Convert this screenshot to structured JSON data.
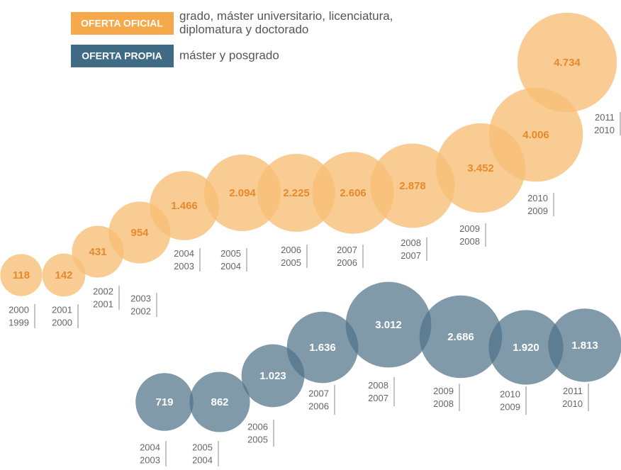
{
  "chart_data": {
    "type": "bubble",
    "series": [
      {
        "name": "OFERTA OFICIAL",
        "color": "#f7bf78",
        "label_color": "#e8892a",
        "badge_color": "#f5a94a",
        "description": [
          "grado, máster universitario, licenciatura,",
          "diplomatura y doctorado"
        ],
        "values": [
          118,
          142,
          431,
          954,
          1466,
          2094,
          2225,
          2606,
          2878,
          3452,
          4006,
          4734
        ],
        "value_labels": [
          "118",
          "142",
          "431",
          "954",
          "1.466",
          "2.094",
          "2.225",
          "2.606",
          "2.878",
          "3.452",
          "4.006",
          "4.734"
        ],
        "categories": [
          [
            "2000",
            "1999"
          ],
          [
            "2001",
            "2000"
          ],
          [
            "2002",
            "2001"
          ],
          [
            "2003",
            "2002"
          ],
          [
            "2004",
            "2003"
          ],
          [
            "2005",
            "2004"
          ],
          [
            "2006",
            "2005"
          ],
          [
            "2007",
            "2006"
          ],
          [
            "2008",
            "2007"
          ],
          [
            "2009",
            "2008"
          ],
          [
            "2010",
            "2009"
          ],
          [
            "2011",
            "2010"
          ]
        ]
      },
      {
        "name": "OFERTA PROPIA",
        "color": "#4f7389",
        "label_color": "#ffffff",
        "badge_color": "#3f6b85",
        "description": [
          "máster y posgrado"
        ],
        "values": [
          719,
          862,
          1023,
          1636,
          3012,
          2686,
          1920,
          1813
        ],
        "value_labels": [
          "719",
          "862",
          "1.023",
          "1.636",
          "3.012",
          "2.686",
          "1.920",
          "1.813"
        ],
        "categories": [
          [
            "2004",
            "2003"
          ],
          [
            "2005",
            "2004"
          ],
          [
            "2006",
            "2005"
          ],
          [
            "2007",
            "2006"
          ],
          [
            "2008",
            "2007"
          ],
          [
            "2009",
            "2008"
          ],
          [
            "2010",
            "2009"
          ],
          [
            "2011",
            "2010"
          ]
        ]
      }
    ]
  }
}
